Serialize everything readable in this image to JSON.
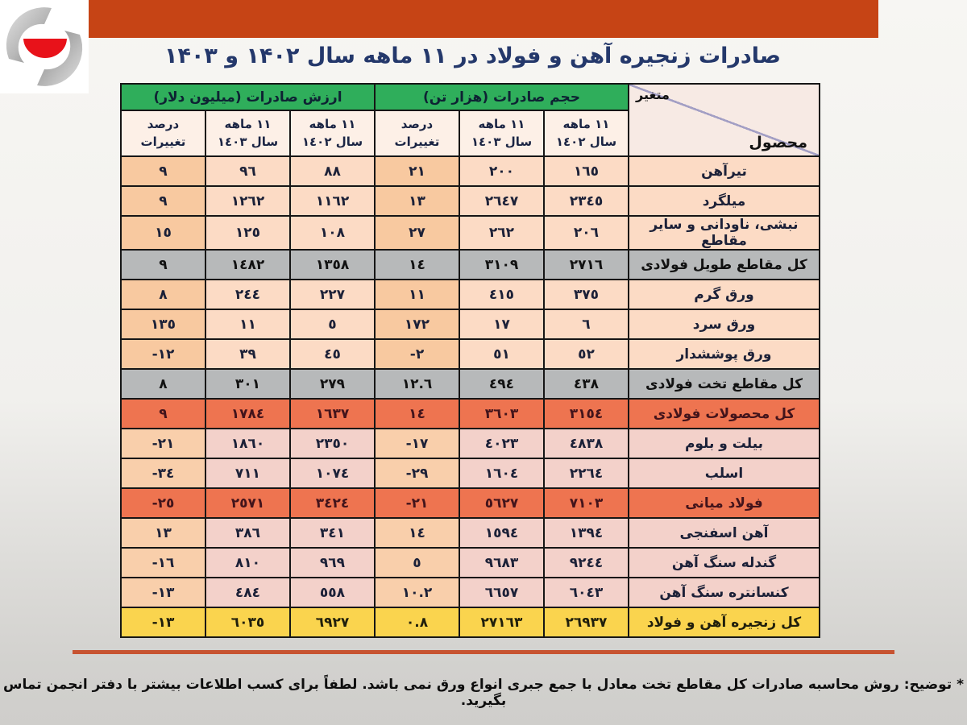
{
  "title": {
    "text": "صادرات زنجیره آهن و فولاد در ۱۱ ماهه سال ۱۴۰۲ و ۱۴۰۳",
    "color": "#24386b"
  },
  "banner": {
    "bar_color": "#c64415",
    "separator_color": "#c75331"
  },
  "logo": {
    "name": "steel-association-swirl-logo",
    "swirl_color": "#9a9a9a",
    "bowl_color": "#e8121a"
  },
  "table": {
    "corner": {
      "top_label": "متغیر",
      "bottom_label": "محصول"
    },
    "groups": {
      "volume": "حجم صادرات (هزار تن)",
      "value": "ارزش صادرات (میلیون دلار)"
    },
    "subheaders": {
      "y1402_line1": "١١ ماهه",
      "y1402_line2": "سال ١٤٠٢",
      "y1403_line1": "١١ ماهه",
      "y1403_line2": "سال ١٤٠٣",
      "pct": "درصد تغییرات"
    },
    "colors": {
      "header_green": "#2fae5b",
      "row_normal": "#fcdbc5",
      "row_normal_pct": "#f8c9a0",
      "row_pink": "#f3d1ca",
      "row_pink_pct": "#f9cfab",
      "row_gray": "#b7b9ba",
      "row_orange": "#ee7450",
      "row_yellow": "#fad44e"
    },
    "rows": [
      {
        "product": "تیرآهن",
        "vol_1402": "١٦٥",
        "vol_1403": "٢٠٠",
        "vol_pct": "٢١",
        "val_1402": "٨٨",
        "val_1403": "٩٦",
        "val_pct": "٩",
        "style": "normal"
      },
      {
        "product": "میلگرد",
        "vol_1402": "٢٣٤٥",
        "vol_1403": "٢٦٤٧",
        "vol_pct": "١٣",
        "val_1402": "١١٦٢",
        "val_1403": "١٢٦٢",
        "val_pct": "٩",
        "style": "normal"
      },
      {
        "product": "نبشی، ناودانی و سایر مقاطع",
        "vol_1402": "٢٠٦",
        "vol_1403": "٢٦٢",
        "vol_pct": "٢٧",
        "val_1402": "١٠٨",
        "val_1403": "١٢٥",
        "val_pct": "١٥",
        "style": "normal"
      },
      {
        "product": "کل مقاطع طویل فولادی",
        "vol_1402": "٢٧١٦",
        "vol_1403": "٣١٠٩",
        "vol_pct": "١٤",
        "val_1402": "١٣٥٨",
        "val_1403": "١٤٨٢",
        "val_pct": "٩",
        "style": "gray"
      },
      {
        "product": "ورق گرم",
        "vol_1402": "٣٧٥",
        "vol_1403": "٤١٥",
        "vol_pct": "١١",
        "val_1402": "٢٢٧",
        "val_1403": "٢٤٤",
        "val_pct": "٨",
        "style": "normal"
      },
      {
        "product": "ورق سرد",
        "vol_1402": "٦",
        "vol_1403": "١٧",
        "vol_pct": "١٧٢",
        "val_1402": "٥",
        "val_1403": "١١",
        "val_pct": "١٣٥",
        "style": "normal"
      },
      {
        "product": "ورق پوششدار",
        "vol_1402": "٥٢",
        "vol_1403": "٥١",
        "vol_pct": "-٢",
        "val_1402": "٤٥",
        "val_1403": "٣٩",
        "val_pct": "-١٢",
        "style": "normal"
      },
      {
        "product": "کل مقاطع تخت فولادی",
        "vol_1402": "٤٣٨",
        "vol_1403": "٤٩٤",
        "vol_pct": "١٢.٦",
        "val_1402": "٢٧٩",
        "val_1403": "٣٠١",
        "val_pct": "٨",
        "style": "gray"
      },
      {
        "product": "کل محصولات فولادی",
        "vol_1402": "٣١٥٤",
        "vol_1403": "٣٦٠٣",
        "vol_pct": "١٤",
        "val_1402": "١٦٣٧",
        "val_1403": "١٧٨٤",
        "val_pct": "٩",
        "style": "orange"
      },
      {
        "product": "بیلت و بلوم",
        "vol_1402": "٤٨٣٨",
        "vol_1403": "٤٠٢٣",
        "vol_pct": "-١٧",
        "val_1402": "٢٣٥٠",
        "val_1403": "١٨٦٠",
        "val_pct": "-٢١",
        "style": "pink"
      },
      {
        "product": "اسلب",
        "vol_1402": "٢٢٦٤",
        "vol_1403": "١٦٠٤",
        "vol_pct": "-٢٩",
        "val_1402": "١٠٧٤",
        "val_1403": "٧١١",
        "val_pct": "-٣٤",
        "style": "pink"
      },
      {
        "product": "فولاد میانی",
        "vol_1402": "٧١٠٣",
        "vol_1403": "٥٦٢٧",
        "vol_pct": "-٢١",
        "val_1402": "٣٤٢٤",
        "val_1403": "٢٥٧١",
        "val_pct": "-٢٥",
        "style": "orange"
      },
      {
        "product": "آهن اسفنجی",
        "vol_1402": "١٣٩٤",
        "vol_1403": "١٥٩٤",
        "vol_pct": "١٤",
        "val_1402": "٣٤١",
        "val_1403": "٣٨٦",
        "val_pct": "١٣",
        "style": "pink"
      },
      {
        "product": "گندله سنگ آهن",
        "vol_1402": "٩٢٤٤",
        "vol_1403": "٩٦٨٣",
        "vol_pct": "٥",
        "val_1402": "٩٦٩",
        "val_1403": "٨١٠",
        "val_pct": "-١٦",
        "style": "pink"
      },
      {
        "product": "کنسانتره سنگ آهن",
        "vol_1402": "٦٠٤٣",
        "vol_1403": "٦٦٥٧",
        "vol_pct": "١٠.٢",
        "val_1402": "٥٥٨",
        "val_1403": "٤٨٤",
        "val_pct": "-١٣",
        "style": "pink"
      },
      {
        "product": "کل زنجیره آهن و فولاد",
        "vol_1402": "٢٦٩٣٧",
        "vol_1403": "٢٧١٦٣",
        "vol_pct": "٠.٨",
        "val_1402": "٦٩٢٧",
        "val_1403": "٦٠٣٥",
        "val_pct": "-١٣",
        "style": "yellow"
      }
    ]
  },
  "footnote": {
    "lead": "* توضیح:",
    "text": "روش محاسبه صادرات کل مقاطع تخت معادل با جمع جبری انواع ورق نمی باشد. لطفاً برای کسب اطلاعات بیشتر با دفتر انجمن تماس بگیرید."
  }
}
